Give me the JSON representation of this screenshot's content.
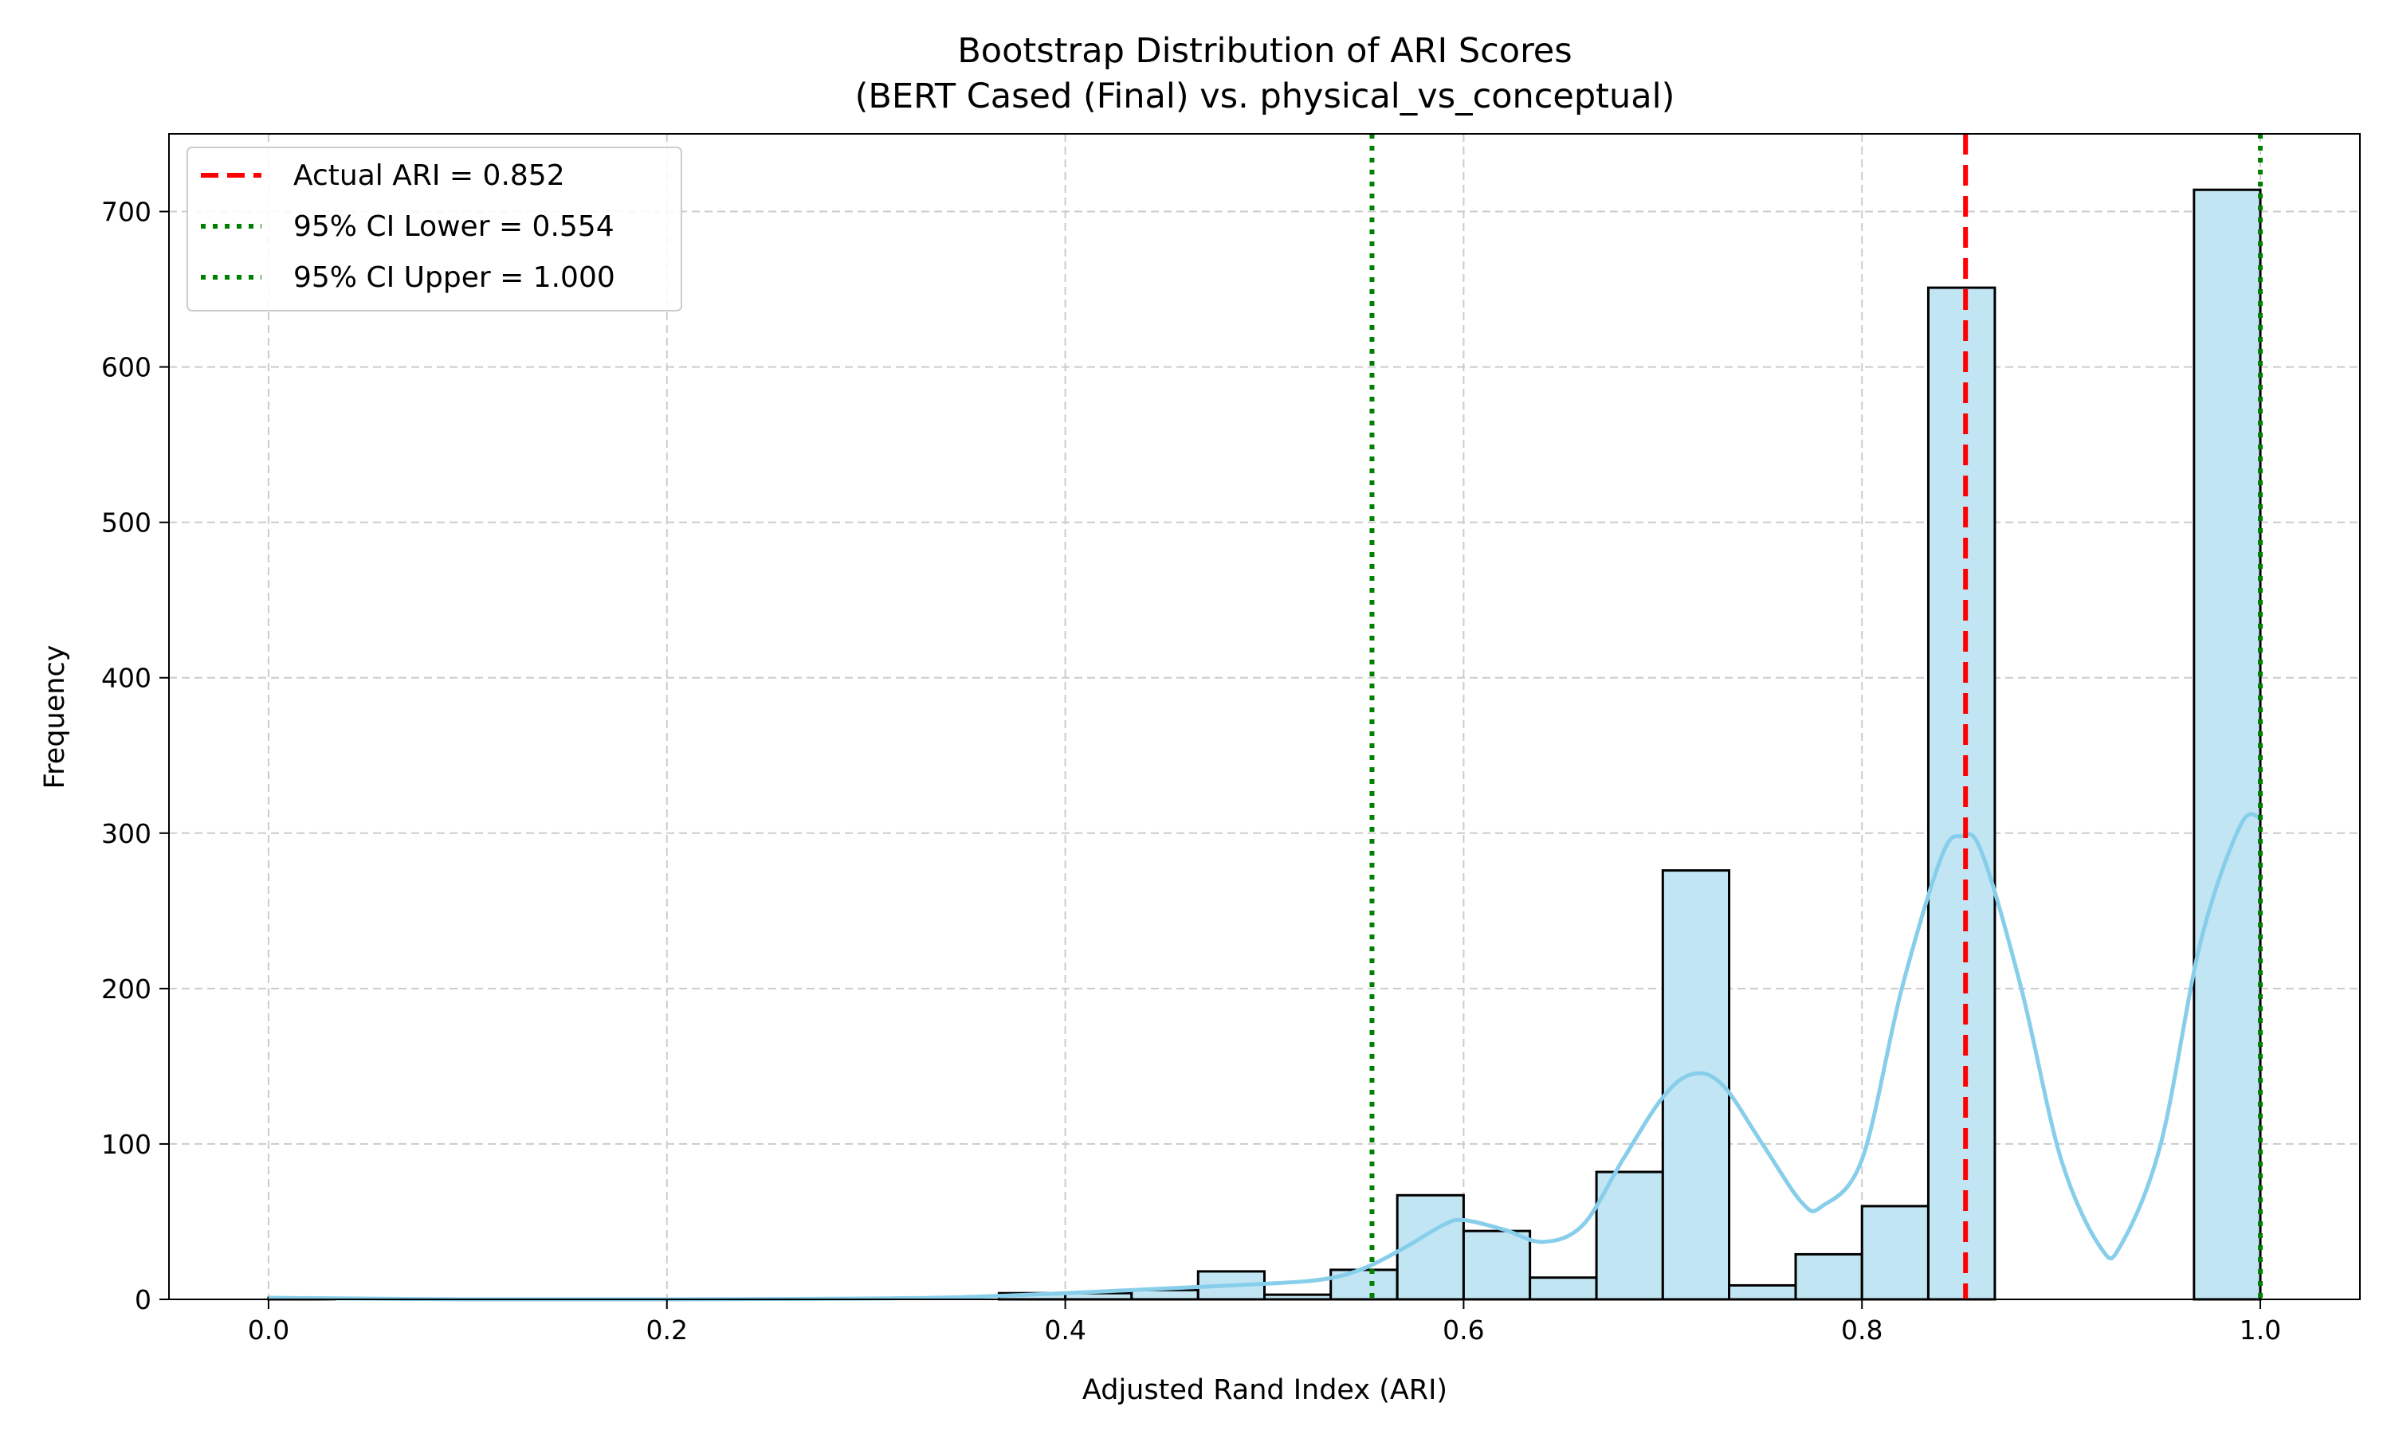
{
  "chart_data": {
    "type": "bar",
    "title_line1": "Bootstrap Distribution of ARI Scores",
    "title_line2": "(BERT Cased (Final) vs. physical_vs_conceptual)",
    "xlabel": "Adjusted Rand Index (ARI)",
    "ylabel": "Frequency",
    "xlim": [
      -0.05,
      1.05
    ],
    "ylim": [
      0,
      750
    ],
    "xticks": [
      "0.0",
      "0.2",
      "0.4",
      "0.6",
      "0.8",
      "1.0"
    ],
    "yticks": [
      "0",
      "100",
      "200",
      "300",
      "400",
      "500",
      "600",
      "700"
    ],
    "grid": true,
    "bin_width": 0.0333,
    "bins": [
      {
        "x0": 0.0,
        "x1": 0.0333,
        "count": 1
      },
      {
        "x0": 0.0333,
        "x1": 0.0667,
        "count": 0
      },
      {
        "x0": 0.0667,
        "x1": 0.1,
        "count": 0
      },
      {
        "x0": 0.1,
        "x1": 0.1333,
        "count": 0
      },
      {
        "x0": 0.1333,
        "x1": 0.1667,
        "count": 0
      },
      {
        "x0": 0.1667,
        "x1": 0.2,
        "count": 0
      },
      {
        "x0": 0.2,
        "x1": 0.2333,
        "count": 0
      },
      {
        "x0": 0.2333,
        "x1": 0.2667,
        "count": 0
      },
      {
        "x0": 0.2667,
        "x1": 0.3,
        "count": 0
      },
      {
        "x0": 0.3,
        "x1": 0.3333,
        "count": 0
      },
      {
        "x0": 0.3333,
        "x1": 0.3667,
        "count": 0
      },
      {
        "x0": 0.3667,
        "x1": 0.4,
        "count": 4
      },
      {
        "x0": 0.4,
        "x1": 0.4333,
        "count": 4
      },
      {
        "x0": 0.4333,
        "x1": 0.4667,
        "count": 6
      },
      {
        "x0": 0.4667,
        "x1": 0.5,
        "count": 18
      },
      {
        "x0": 0.5,
        "x1": 0.5333,
        "count": 3
      },
      {
        "x0": 0.5333,
        "x1": 0.5667,
        "count": 19
      },
      {
        "x0": 0.5667,
        "x1": 0.6,
        "count": 67
      },
      {
        "x0": 0.6,
        "x1": 0.6333,
        "count": 44
      },
      {
        "x0": 0.6333,
        "x1": 0.6667,
        "count": 14
      },
      {
        "x0": 0.6667,
        "x1": 0.7,
        "count": 82
      },
      {
        "x0": 0.7,
        "x1": 0.7333,
        "count": 276
      },
      {
        "x0": 0.7333,
        "x1": 0.7667,
        "count": 9
      },
      {
        "x0": 0.7667,
        "x1": 0.8,
        "count": 29
      },
      {
        "x0": 0.8,
        "x1": 0.8333,
        "count": 60
      },
      {
        "x0": 0.8333,
        "x1": 0.8667,
        "count": 651
      },
      {
        "x0": 0.8667,
        "x1": 0.9,
        "count": 0
      },
      {
        "x0": 0.9,
        "x1": 0.9333,
        "count": 0
      },
      {
        "x0": 0.9333,
        "x1": 0.9667,
        "count": 0
      },
      {
        "x0": 0.9667,
        "x1": 1.0,
        "count": 714
      }
    ],
    "kde_points": [
      [
        0.0,
        1
      ],
      [
        0.1,
        0
      ],
      [
        0.2,
        0
      ],
      [
        0.3,
        0.5
      ],
      [
        0.35,
        1.5
      ],
      [
        0.4,
        4
      ],
      [
        0.45,
        7
      ],
      [
        0.5,
        10
      ],
      [
        0.53,
        13
      ],
      [
        0.55,
        20
      ],
      [
        0.57,
        33
      ],
      [
        0.59,
        48
      ],
      [
        0.6,
        51
      ],
      [
        0.62,
        45
      ],
      [
        0.64,
        37
      ],
      [
        0.66,
        48
      ],
      [
        0.68,
        90
      ],
      [
        0.7,
        130
      ],
      [
        0.715,
        145
      ],
      [
        0.73,
        138
      ],
      [
        0.75,
        100
      ],
      [
        0.77,
        62
      ],
      [
        0.78,
        60
      ],
      [
        0.8,
        90
      ],
      [
        0.82,
        200
      ],
      [
        0.84,
        285
      ],
      [
        0.85,
        298
      ],
      [
        0.86,
        288
      ],
      [
        0.88,
        200
      ],
      [
        0.9,
        90
      ],
      [
        0.92,
        33
      ],
      [
        0.93,
        35
      ],
      [
        0.95,
        100
      ],
      [
        0.97,
        230
      ],
      [
        0.99,
        305
      ],
      [
        1.0,
        310
      ]
    ],
    "lines": [
      {
        "name": "Actual ARI = 0.852",
        "x": 0.852,
        "color": "#ff0000",
        "style": "dashed"
      },
      {
        "name": "95% CI Lower = 0.554",
        "x": 0.554,
        "color": "#008000",
        "style": "dotted"
      },
      {
        "name": "95% CI Upper = 1.000",
        "x": 1.0,
        "color": "#008000",
        "style": "dotted"
      }
    ],
    "legend_position": "top-left",
    "colors": {
      "bar_fill": "#c2e5f3",
      "bar_edge": "#000000",
      "kde": "#87ceeb",
      "grid": "#cccccc"
    }
  }
}
